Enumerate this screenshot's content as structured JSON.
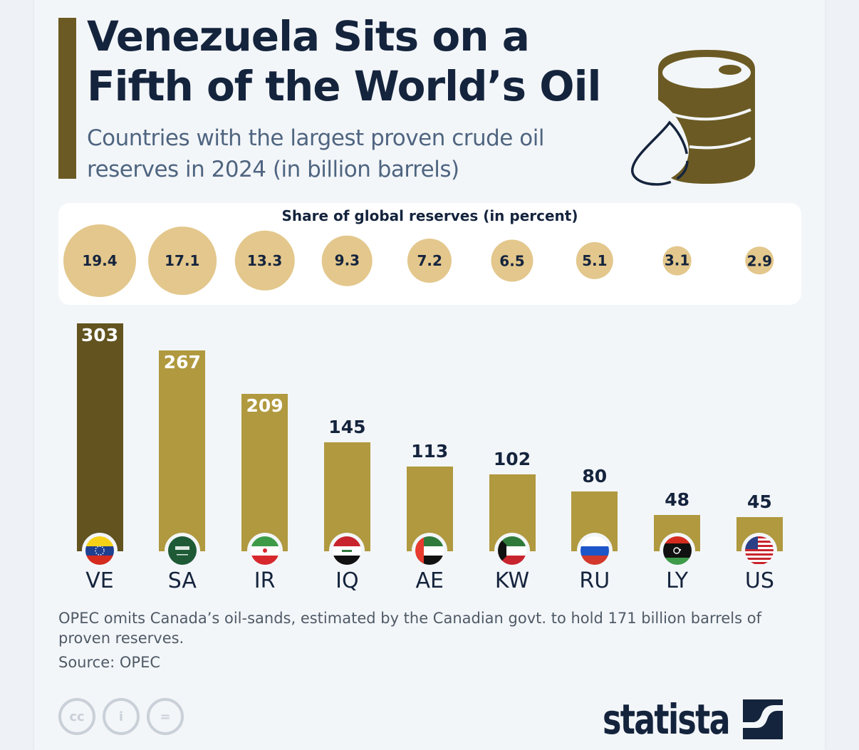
{
  "header": {
    "title": "Venezuela Sits on a Fifth of the World’s Oil",
    "subtitle": "Countries with the largest proven crude oil reserves in 2024 (in billion barrels)"
  },
  "share_panel": {
    "title": "Share of global reserves (in percent)"
  },
  "colors": {
    "highlight_bar": "#62531f",
    "bar": "#b0993f",
    "bubble": "#e3c78c",
    "text_dark": "#15243d"
  },
  "chart_data": {
    "type": "bar",
    "title": "Venezuela Sits on a Fifth of the World’s Oil",
    "subtitle": "Countries with the largest proven crude oil reserves in 2024 (in billion barrels)",
    "xlabel": "",
    "ylabel": "billion barrels",
    "ylim": [
      0,
      303
    ],
    "grid": false,
    "categories": [
      "VE",
      "SA",
      "IR",
      "IQ",
      "AE",
      "KW",
      "RU",
      "LY",
      "US"
    ],
    "flags": [
      "venezuela-flag",
      "saudi-arabia-flag",
      "iran-flag",
      "iraq-flag",
      "uae-flag",
      "kuwait-flag",
      "russia-flag",
      "libya-flag",
      "usa-flag"
    ],
    "values": [
      303,
      267,
      209,
      145,
      113,
      102,
      80,
      48,
      45
    ],
    "highlight": "VE",
    "share_of_global_reserves_percent": [
      19.4,
      17.1,
      13.3,
      9.3,
      7.2,
      6.5,
      5.1,
      3.1,
      2.9
    ]
  },
  "footer": {
    "note": "OPEC omits Canada’s oil-sands, estimated by the Canadian govt. to hold 171 billion barrels of proven reserves.",
    "source": "Source: OPEC",
    "cc_icons": [
      "cc",
      "i",
      "="
    ],
    "logo": "statista"
  }
}
